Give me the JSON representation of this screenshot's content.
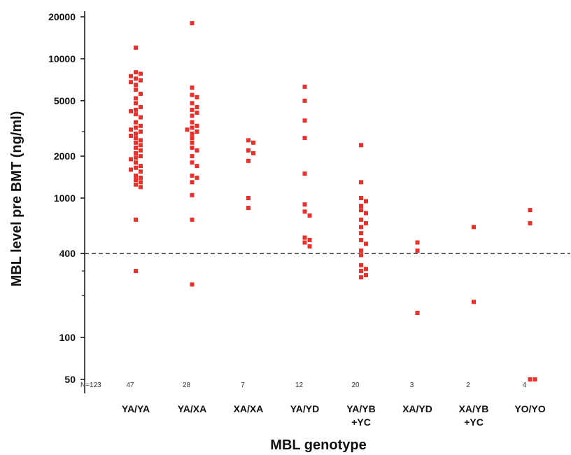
{
  "chart_data": {
    "type": "scatter",
    "ylabel": "MBL level pre BMT (ng/ml)",
    "xlabel": "MBL genotype",
    "y_scale": "log",
    "ylim": [
      40,
      20000
    ],
    "y_ticks": [
      20000,
      10000,
      5000,
      2000,
      1000,
      400,
      100,
      50
    ],
    "reference_line": {
      "y": 400,
      "style": "dashed"
    },
    "marker_color": "#e8312a",
    "n_label": "N=123",
    "categories": [
      {
        "label": [
          "YA/YA"
        ],
        "n": "47",
        "values": [
          12000,
          8000,
          7800,
          7500,
          7200,
          7000,
          6800,
          6500,
          6000,
          5600,
          5200,
          4800,
          4500,
          4300,
          4200,
          4000,
          3800,
          3500,
          3300,
          3200,
          3100,
          3000,
          2900,
          2800,
          2700,
          2600,
          2500,
          2400,
          2300,
          2200,
          2100,
          2000,
          1950,
          1900,
          1800,
          1700,
          1650,
          1600,
          1550,
          1450,
          1400,
          1350,
          1300,
          1250,
          1200,
          700,
          300
        ]
      },
      {
        "label": [
          "YA/XA"
        ],
        "n": "28",
        "values": [
          18000,
          6200,
          5500,
          5300,
          4800,
          4500,
          4300,
          4100,
          3900,
          3500,
          3300,
          3200,
          3100,
          3000,
          2900,
          2700,
          2500,
          2300,
          2200,
          2000,
          1800,
          1700,
          1450,
          1400,
          1300,
          1050,
          700,
          240
        ]
      },
      {
        "label": [
          "XA/XA"
        ],
        "n": "7",
        "values": [
          2600,
          2500,
          2200,
          2100,
          1850,
          1000,
          850
        ]
      },
      {
        "label": [
          "YA/YD"
        ],
        "n": "12",
        "values": [
          6300,
          5000,
          3600,
          2700,
          1500,
          900,
          800,
          750,
          520,
          500,
          480,
          450
        ]
      },
      {
        "label": [
          "YA/YB",
          "+YC"
        ],
        "n": "20",
        "values": [
          2400,
          1300,
          1000,
          950,
          880,
          820,
          780,
          700,
          660,
          620,
          560,
          500,
          470,
          420,
          390,
          330,
          310,
          300,
          280,
          270
        ]
      },
      {
        "label": [
          "XA/YD"
        ],
        "n": "3",
        "values": [
          480,
          420,
          150
        ]
      },
      {
        "label": [
          "XA/YB",
          "+YC"
        ],
        "n": "2",
        "values": [
          620,
          180
        ]
      },
      {
        "label": [
          "YO/YO"
        ],
        "n": "4",
        "values": [
          820,
          660,
          50,
          50
        ]
      }
    ]
  }
}
